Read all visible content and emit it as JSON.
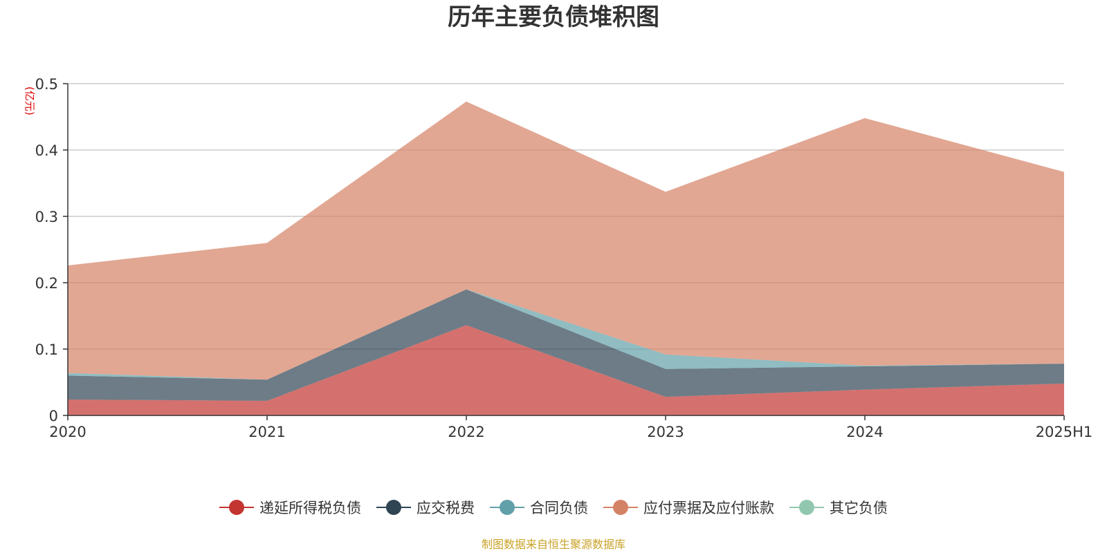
{
  "chart_data": {
    "type": "area",
    "stacked": true,
    "title": "历年主要负债堆积图",
    "unit_label": "(亿元)",
    "categories": [
      "2020",
      "2021",
      "2022",
      "2023",
      "2024",
      "2025H1"
    ],
    "ylim": [
      0,
      0.5
    ],
    "yticks": [
      "0",
      "0.1",
      "0.2",
      "0.3",
      "0.4",
      "0.5"
    ],
    "grid": true,
    "legend_position": "bottom",
    "series": [
      {
        "name": "递延所得税负债",
        "color": "#c23531",
        "values": [
          0.024,
          0.022,
          0.136,
          0.028,
          0.039,
          0.048
        ]
      },
      {
        "name": "应交税费",
        "color": "#2f4554",
        "values": [
          0.036,
          0.032,
          0.054,
          0.042,
          0.035,
          0.03
        ]
      },
      {
        "name": "合同负债",
        "color": "#61a0a8",
        "values": [
          0.004,
          0.0,
          0.0,
          0.022,
          0.001,
          0.0
        ]
      },
      {
        "name": "应付票据及应付账款",
        "color": "#d48265",
        "values": [
          0.162,
          0.206,
          0.283,
          0.245,
          0.373,
          0.289
        ]
      },
      {
        "name": "其它负债",
        "color": "#91c7ae",
        "values": [
          0.0,
          0.0,
          0.0,
          0.0,
          0.0,
          0.0
        ]
      }
    ],
    "source": "制图数据来自恒生聚源数据库"
  }
}
